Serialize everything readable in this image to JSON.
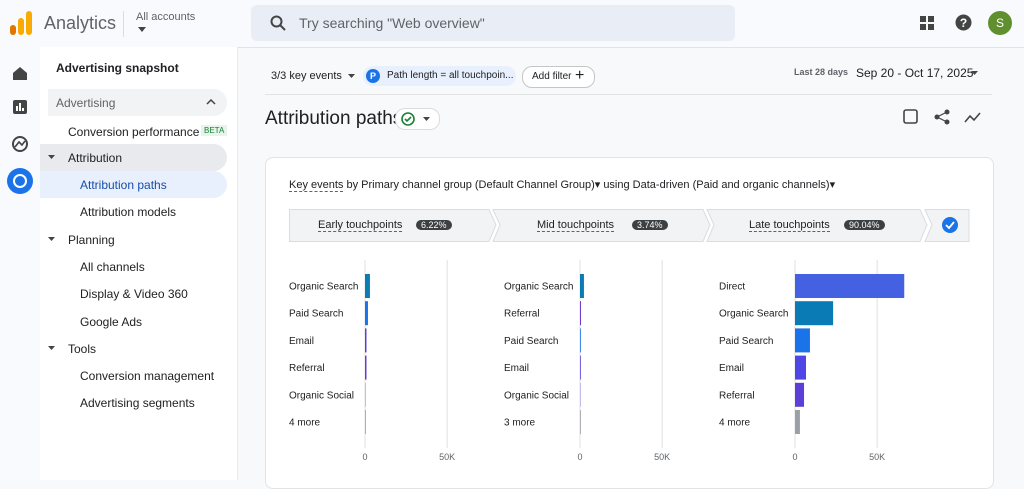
{
  "header": {
    "product": "Analytics",
    "account": "All accounts",
    "search_placeholder": "Try searching \"Web overview\"",
    "avatar": "S"
  },
  "nav": {
    "title": "Advertising snapshot",
    "section": "Advertising",
    "items": [
      {
        "label": "Conversion performance",
        "badge": "BETA"
      },
      {
        "label": "Attribution",
        "children": [
          "Attribution paths",
          "Attribution models"
        ]
      },
      {
        "label": "Planning",
        "children": [
          "All channels",
          "Display & Video 360",
          "Google Ads"
        ]
      },
      {
        "label": "Tools",
        "children": [
          "Conversion management",
          "Advertising segments"
        ]
      }
    ]
  },
  "toolbar": {
    "key_events": "3/3 key events",
    "chip_icon": "P",
    "chip": "Path length = all touchpoin...",
    "add_filter": "Add filter",
    "date_label": "Last 28 days",
    "date_range": "Sep 20 - Oct 17, 2025"
  },
  "page_title": "Attribution paths",
  "card": {
    "heading": [
      "Key events",
      "by",
      "Primary channel group (Default Channel Group)",
      "using",
      "Data-driven (Paid and organic channels)"
    ],
    "stages": [
      {
        "name": "Early touchpoints",
        "share": "6.22%"
      },
      {
        "name": "Mid touchpoints",
        "share": "3.74%"
      },
      {
        "name": "Late touchpoints",
        "share": "90.04%"
      }
    ],
    "charts": [
      {
        "type": "bar",
        "categories": [
          "Organic Search",
          "Paid Search",
          "Email",
          "Referral",
          "Organic Social",
          "4 more"
        ],
        "values": [
          3000,
          1800,
          900,
          900,
          300,
          200
        ],
        "colors": [
          "#0b7bb5",
          "#1a73e8",
          "#5b3fd6",
          "#6a3bd0",
          "#b4aee6",
          "#9aa0a6"
        ],
        "xlim": [
          0,
          70000
        ],
        "xticks": [
          0,
          {
            "value": 50000,
            "label": "50K"
          }
        ]
      },
      {
        "type": "bar",
        "categories": [
          "Organic Search",
          "Referral",
          "Paid Search",
          "Email",
          "Organic Social",
          "3 more"
        ],
        "values": [
          2400,
          600,
          500,
          300,
          200,
          100
        ],
        "colors": [
          "#0b7bb5",
          "#6a3bd0",
          "#1a73e8",
          "#5b3fd6",
          "#b4aee6",
          "#9aa0a6"
        ],
        "xlim": [
          0,
          70000
        ],
        "xticks": [
          0,
          {
            "value": 50000,
            "label": "50K"
          }
        ]
      },
      {
        "type": "bar",
        "categories": [
          "Direct",
          "Organic Search",
          "Paid Search",
          "Email",
          "Referral",
          "4 more"
        ],
        "values": [
          66500,
          23200,
          9100,
          6700,
          5500,
          3000
        ],
        "colors": [
          "#4361e0",
          "#0b7bb5",
          "#1a73e8",
          "#4f46e5",
          "#5b3fd6",
          "#9aa0a6"
        ],
        "xlim": [
          0,
          70000
        ],
        "xticks": [
          0,
          {
            "value": 50000,
            "label": "50K"
          }
        ]
      }
    ]
  }
}
